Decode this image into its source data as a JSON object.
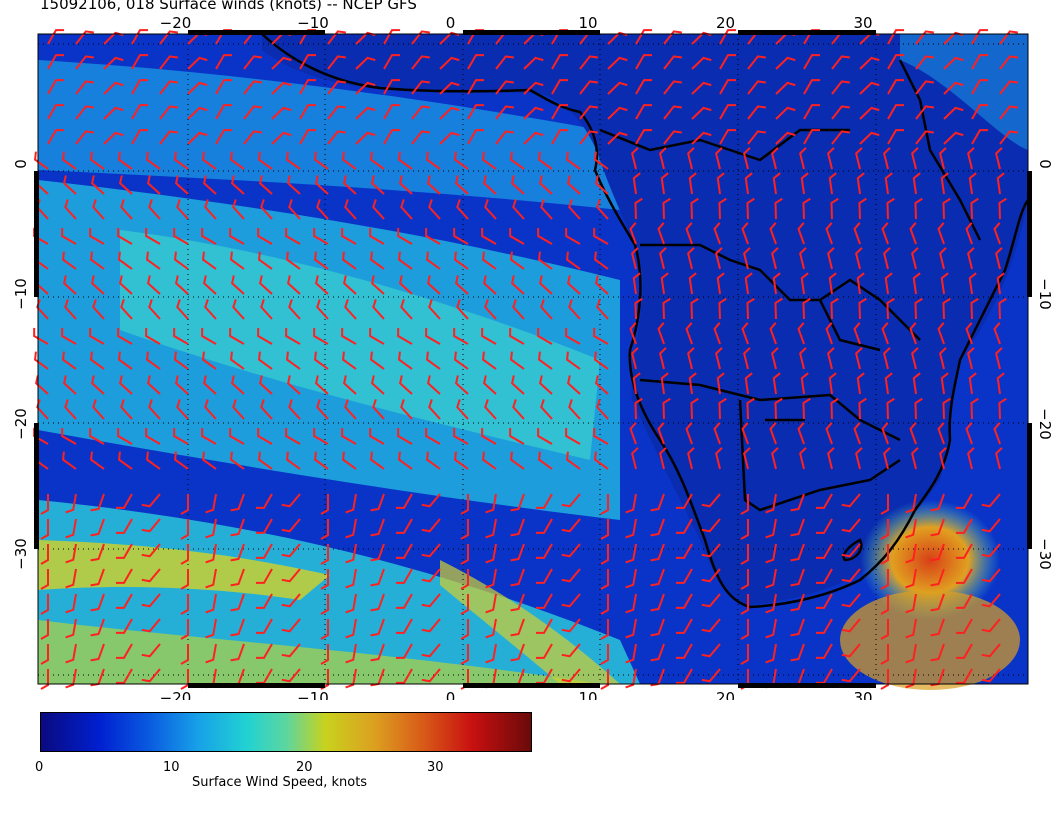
{
  "title": "15092106, 018 Surface winds (knots) -- NCEP GFS",
  "map": {
    "lon_ticks": [
      -20,
      -10,
      0,
      10,
      20,
      30
    ],
    "lat_ticks": [
      0,
      -10,
      -20,
      -30
    ],
    "lon_range": [
      -30,
      42
    ],
    "lat_range": [
      -40,
      10
    ],
    "barb_color": "#ff2020",
    "land_outline_color": "#000000"
  },
  "colorbar": {
    "label": "Surface Wind Speed, knots",
    "ticks": [
      "0",
      "10",
      "20",
      "30"
    ],
    "range": [
      0,
      36
    ]
  }
}
